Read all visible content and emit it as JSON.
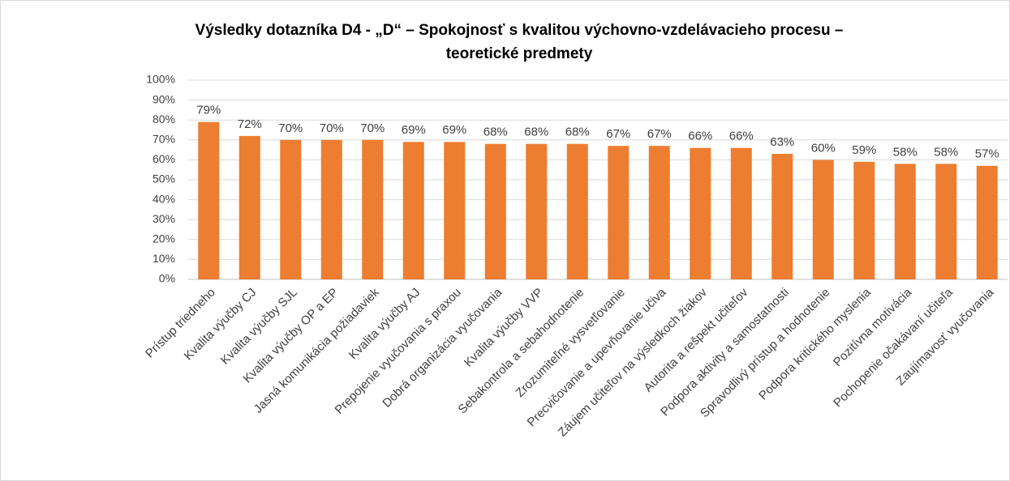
{
  "chart_data": {
    "type": "bar",
    "title": [
      "Výsledky dotazníka D4 - „D“ – Spokojnosť s kvalitou výchovno-vzdelávacieho procesu –",
      "teoretické predmety"
    ],
    "categories": [
      "Prístup triedneho",
      "Kvalita výučby CJ",
      "Kvalita výučby SJL",
      "Kvalita výučby OP a EP",
      "Jasná komunikácia požiadaviek",
      "Kvalita výučby AJ",
      "Prepojenie vyučovania s praxou",
      "Dobrá organizácia vyučovania",
      "Kvalita výučby VVP",
      "Sebakontrola a sebahodnotenie",
      "Zrozumiteľné vysvetľovanie",
      "Precvičovanie a upevňovanie učiva",
      "Záujem učiteľov na výsledkoch žiakov",
      "Autorita a rešpekt učiteľov",
      "Podpora aktivity a samostatnosti",
      "Spravodlivý prístup a hodnotenie",
      "Podpora kritického myslenia",
      "Pozitívna motivácia",
      "Pochopenie očakávaní učiteľa",
      "Zaujímavosť vyučovania"
    ],
    "values": [
      79,
      72,
      70,
      70,
      70,
      69,
      69,
      68,
      68,
      68,
      67,
      67,
      66,
      66,
      63,
      60,
      59,
      58,
      58,
      57
    ],
    "value_labels": [
      "79%",
      "72%",
      "70%",
      "70%",
      "70%",
      "69%",
      "69%",
      "68%",
      "68%",
      "68%",
      "67%",
      "67%",
      "66%",
      "66%",
      "63%",
      "60%",
      "59%",
      "58%",
      "58%",
      "57%"
    ],
    "color": "#ed7d31",
    "ylim": [
      0,
      100
    ],
    "yticks": [
      {
        "value": 0,
        "label": "0%"
      },
      {
        "value": 10,
        "label": "10%"
      },
      {
        "value": 20,
        "label": "20%"
      },
      {
        "value": 30,
        "label": "30%"
      },
      {
        "value": 40,
        "label": "40%"
      },
      {
        "value": 50,
        "label": "50%"
      },
      {
        "value": 60,
        "label": "60%"
      },
      {
        "value": 70,
        "label": "70%"
      },
      {
        "value": 80,
        "label": "80%"
      },
      {
        "value": 90,
        "label": "90%"
      },
      {
        "value": 100,
        "label": "100%"
      }
    ],
    "grid": true
  }
}
